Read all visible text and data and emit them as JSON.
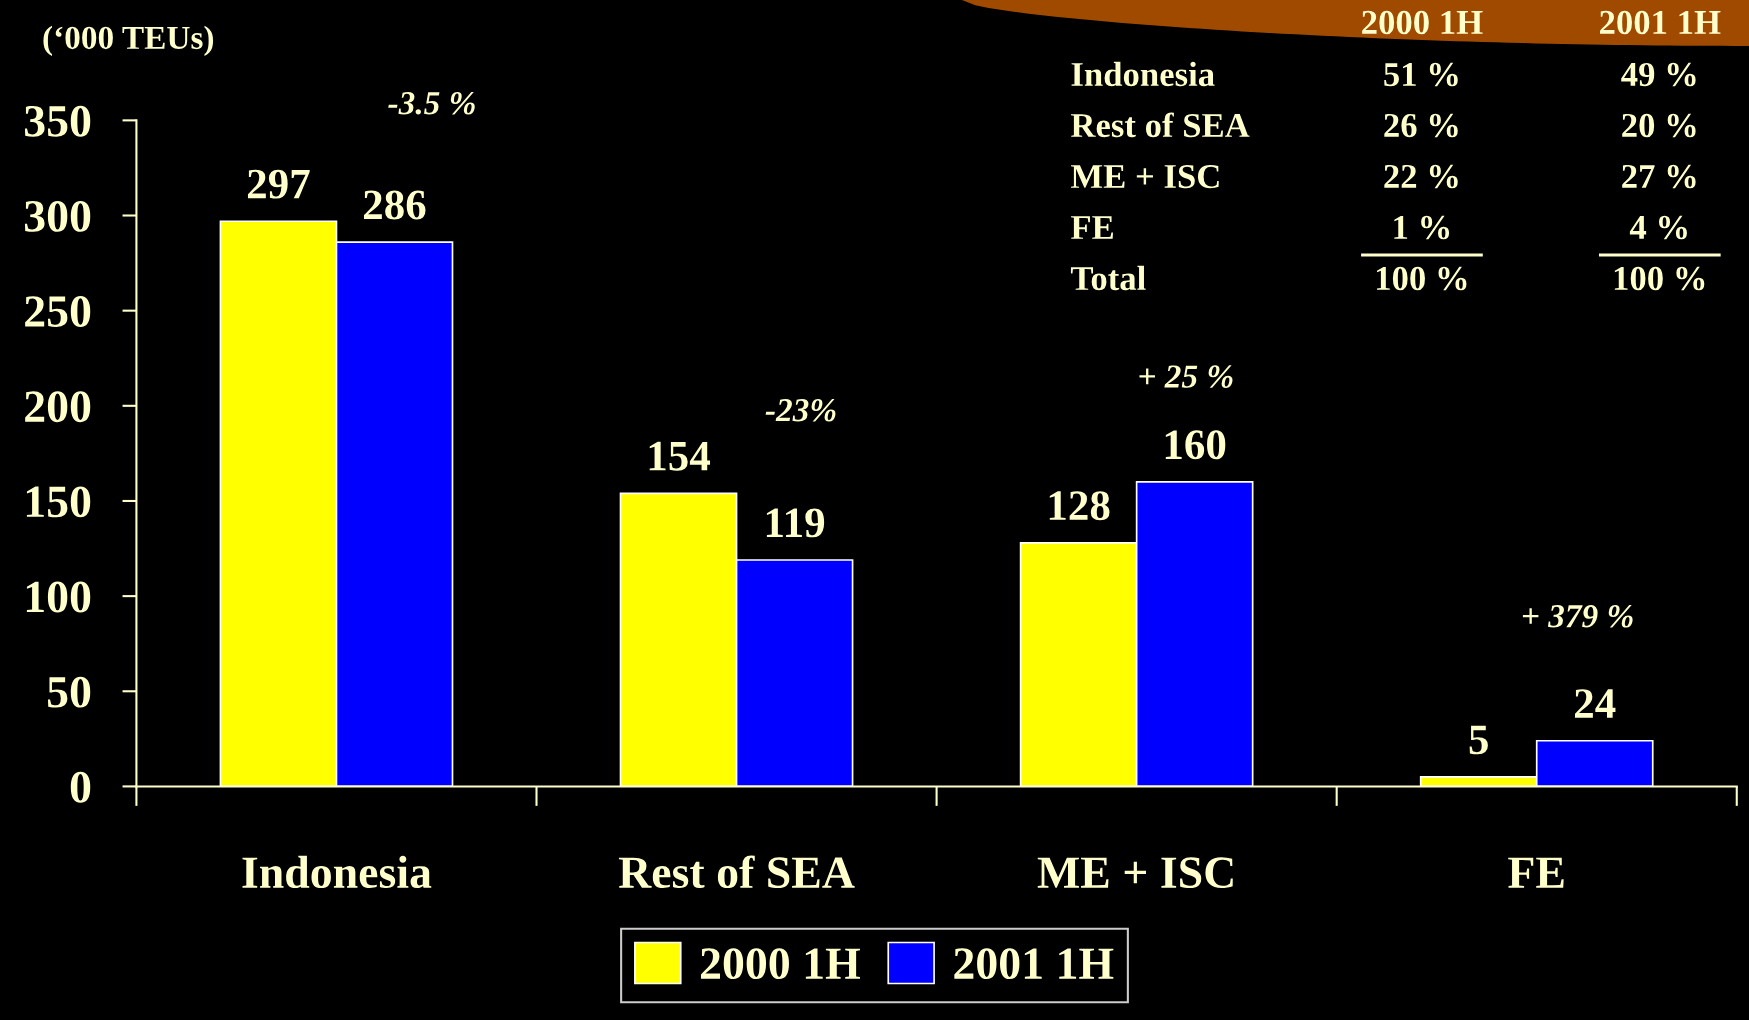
{
  "chart_data": {
    "type": "bar",
    "ylabel": "(‘000 TEUs)",
    "categories": [
      "Indonesia",
      "Rest of SEA",
      "ME + ISC",
      "FE"
    ],
    "series": [
      {
        "name": "2000 1H",
        "color": "#ffff00",
        "values": [
          297,
          154,
          128,
          5
        ]
      },
      {
        "name": "2001 1H",
        "color": "#0000ff",
        "values": [
          286,
          119,
          160,
          24
        ]
      }
    ],
    "ylim": [
      0,
      350
    ],
    "yticks": [
      0,
      50,
      100,
      150,
      200,
      250,
      300,
      350
    ],
    "data_labels": true,
    "grid": false,
    "legend": "bottom",
    "annotations": [
      "-3.5 %",
      "-23%",
      "+ 25 %",
      "+ 379 %",
      "2000 1H",
      "2001 1H",
      "Indonesia",
      "51 %",
      "49 %",
      "Rest of SEA",
      "26 %",
      "20 %",
      "ME + ISC",
      "22 %",
      "27 %",
      "FE",
      "1 %",
      "4 %",
      "Total",
      "100 %",
      "100 %"
    ]
  }
}
